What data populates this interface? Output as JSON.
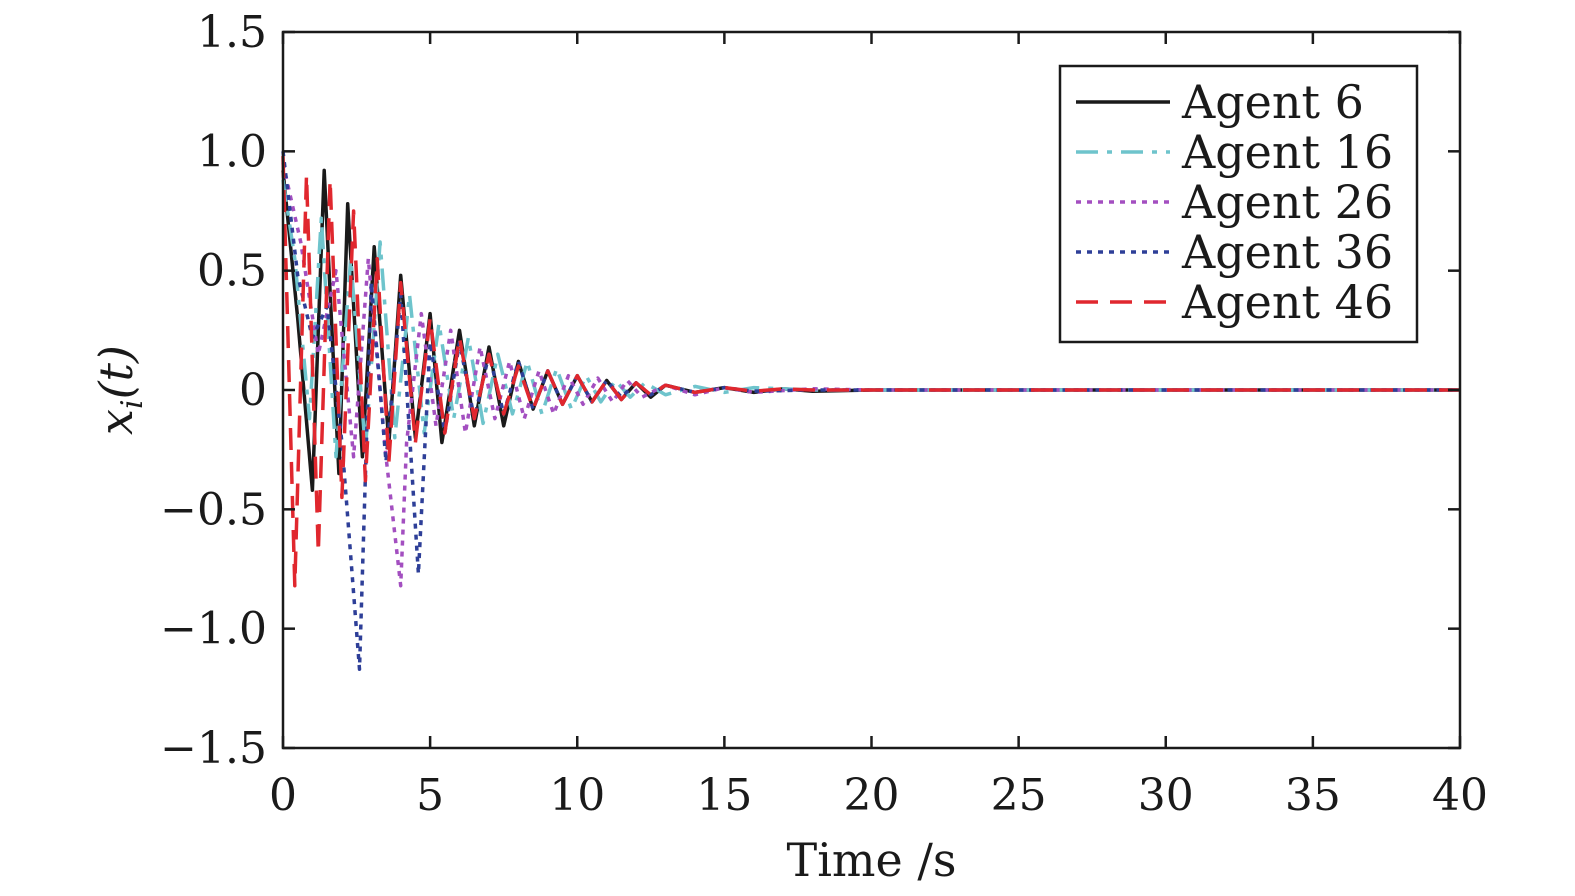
{
  "chart_data": {
    "type": "line",
    "xlabel": "Time /s",
    "ylabel": "x_i(t)",
    "xlim": [
      0,
      40
    ],
    "ylim": [
      -1.5,
      1.5
    ],
    "xticks": [
      0,
      5,
      10,
      15,
      20,
      25,
      30,
      35,
      40
    ],
    "xtick_labels": [
      "0",
      "5",
      "10",
      "15",
      "20",
      "25",
      "30",
      "35",
      "40"
    ],
    "yticks": [
      -1.5,
      -1.0,
      -0.5,
      0,
      0.5,
      1.0,
      1.5
    ],
    "ytick_labels": [
      "−1.5",
      "−1.0",
      "−0.5",
      "0",
      "0.5",
      "1.0",
      "1.5"
    ],
    "grid": false,
    "legend_position": "top-right",
    "series": [
      {
        "name": "Agent 6",
        "color": "#1a1a1a",
        "dash": "solid",
        "x": [
          0,
          0.5,
          1.0,
          1.4,
          1.9,
          2.2,
          2.7,
          3.1,
          3.6,
          4.0,
          4.5,
          5.0,
          5.4,
          6.0,
          6.5,
          7.0,
          7.5,
          8.0,
          8.5,
          9.0,
          9.5,
          10.0,
          10.5,
          11.0,
          11.5,
          12.0,
          12.5,
          13.0,
          14.0,
          15.0,
          16.0,
          17.0,
          18.0,
          20.0,
          25.0,
          30.0,
          35.0,
          40.0
        ],
        "y": [
          0.92,
          0.3,
          -0.42,
          0.92,
          -0.35,
          0.78,
          -0.28,
          0.6,
          -0.22,
          0.48,
          -0.2,
          0.32,
          -0.22,
          0.25,
          -0.15,
          0.18,
          -0.15,
          0.12,
          -0.08,
          0.08,
          -0.06,
          0.06,
          -0.05,
          0.04,
          -0.04,
          0.03,
          -0.03,
          0.02,
          -0.01,
          0.01,
          -0.01,
          0.005,
          -0.005,
          0.0,
          0.0,
          0.0,
          0.0,
          0.0
        ]
      },
      {
        "name": "Agent 16",
        "color": "#6ec4cc",
        "dash": "dashdot",
        "x": [
          0,
          0.4,
          0.9,
          1.3,
          1.8,
          2.3,
          2.8,
          3.3,
          3.8,
          4.3,
          4.8,
          5.3,
          5.8,
          6.3,
          6.8,
          7.3,
          7.8,
          8.3,
          8.8,
          9.3,
          9.8,
          10.3,
          10.8,
          11.3,
          11.8,
          12.3,
          13.0,
          14.0,
          15.0,
          16.0,
          18.0,
          20.0,
          25.0,
          30.0,
          35.0,
          40.0
        ],
        "y": [
          0.88,
          0.55,
          -0.12,
          0.72,
          -0.28,
          0.55,
          -0.25,
          0.62,
          -0.2,
          0.4,
          -0.18,
          0.28,
          -0.12,
          0.22,
          -0.14,
          0.15,
          -0.1,
          0.12,
          -0.1,
          0.09,
          -0.08,
          0.06,
          -0.05,
          0.04,
          -0.03,
          0.03,
          -0.02,
          0.015,
          -0.01,
          0.01,
          0.0,
          0.0,
          0.0,
          0.0,
          0.0,
          0.0
        ]
      },
      {
        "name": "Agent 26",
        "color": "#a34fc0",
        "dash": "dotted",
        "x": [
          0,
          0.6,
          1.2,
          1.8,
          2.4,
          2.9,
          3.5,
          4.0,
          4.2,
          4.7,
          5.2,
          5.7,
          6.2,
          6.7,
          7.2,
          7.7,
          8.2,
          8.7,
          9.2,
          9.7,
          10.2,
          10.7,
          11.2,
          11.7,
          12.2,
          13.0,
          14.0,
          15.0,
          16.0,
          18.0,
          20.0,
          25.0,
          30.0,
          35.0,
          40.0
        ],
        "y": [
          0.95,
          0.62,
          0.15,
          0.5,
          -0.28,
          0.55,
          -0.28,
          -0.82,
          -0.22,
          0.32,
          -0.15,
          0.25,
          -0.18,
          0.18,
          -0.12,
          0.12,
          -0.12,
          0.08,
          -0.1,
          0.06,
          -0.06,
          0.05,
          -0.05,
          0.04,
          -0.03,
          0.02,
          -0.02,
          0.01,
          -0.01,
          0.005,
          0.0,
          0.0,
          0.0,
          0.0,
          0.0
        ]
      },
      {
        "name": "Agent 36",
        "color": "#2e3f98",
        "dash": "dotted",
        "x": [
          0,
          0.5,
          1.0,
          1.5,
          2.0,
          2.6,
          3.0,
          3.5,
          4.0,
          4.6,
          5.0,
          5.5,
          6.0,
          6.5,
          7.0,
          7.5,
          8.0,
          8.5,
          9.0,
          9.5,
          10.0,
          10.5,
          11.0,
          11.5,
          12.0,
          12.5,
          13.0,
          14.0,
          15.0,
          16.0,
          18.0,
          20.0,
          25.0,
          30.0,
          35.0,
          40.0
        ],
        "y": [
          1.0,
          0.48,
          0.22,
          0.35,
          -0.22,
          -1.17,
          0.45,
          -0.3,
          0.4,
          -0.77,
          0.2,
          -0.18,
          0.2,
          -0.12,
          0.15,
          -0.1,
          0.12,
          -0.08,
          0.08,
          -0.06,
          0.06,
          -0.05,
          0.04,
          -0.03,
          0.03,
          -0.02,
          0.02,
          -0.01,
          0.01,
          -0.005,
          0.0,
          0.0,
          0.0,
          0.0,
          0.0,
          0.0
        ]
      },
      {
        "name": "Agent 46",
        "color": "#e0272e",
        "dash": "dashed",
        "x": [
          0,
          0.4,
          0.8,
          1.2,
          1.6,
          2.0,
          2.4,
          2.8,
          3.2,
          3.6,
          4.0,
          4.5,
          5.0,
          5.5,
          6.0,
          6.5,
          7.0,
          7.5,
          8.0,
          8.5,
          9.0,
          9.5,
          10.0,
          10.5,
          11.0,
          11.5,
          12.0,
          12.5,
          13.0,
          14.0,
          15.0,
          16.0,
          17.0,
          18.0,
          20.0,
          25.0,
          30.0,
          35.0,
          40.0
        ],
        "y": [
          0.98,
          -0.82,
          0.9,
          -0.68,
          0.88,
          -0.45,
          0.75,
          -0.38,
          0.55,
          -0.3,
          0.45,
          -0.22,
          0.3,
          -0.18,
          0.22,
          -0.12,
          0.15,
          -0.1,
          0.1,
          -0.08,
          0.08,
          -0.06,
          0.06,
          -0.05,
          0.04,
          -0.04,
          0.03,
          -0.02,
          0.02,
          -0.01,
          0.01,
          -0.005,
          0.005,
          0.0,
          0.0,
          0.0,
          0.0,
          0.0,
          0.0
        ]
      }
    ]
  }
}
